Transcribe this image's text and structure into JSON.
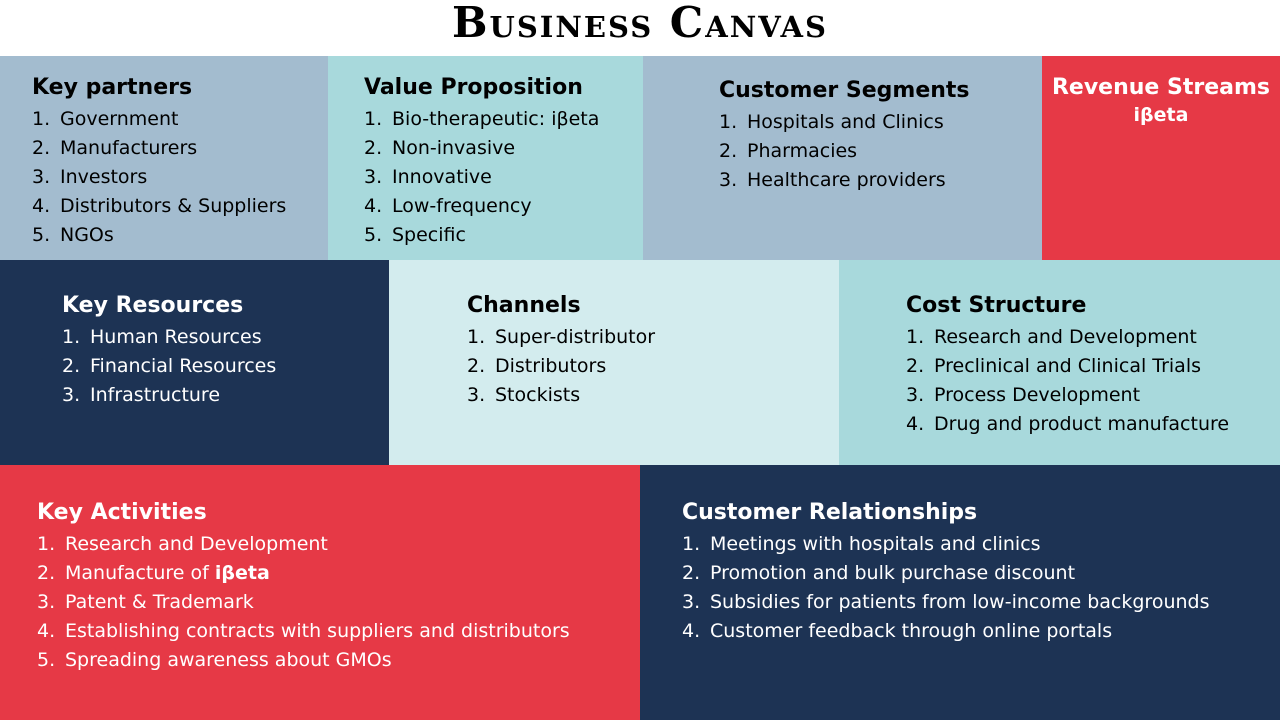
{
  "title": "Business Canvas",
  "colors": {
    "light_steel": "#a3bccf",
    "light_teal": "#a8d9dc",
    "pale_teal": "#d3ecee",
    "navy": "#1d3354",
    "red": "#e63946"
  },
  "key_partners": {
    "heading": "Key partners",
    "items": [
      "Government",
      "Manufacturers",
      "Investors",
      "Distributors & Suppliers",
      "NGOs"
    ]
  },
  "value_proposition": {
    "heading": "Value Proposition",
    "items": [
      "Bio-therapeutic: iβeta",
      "Non-invasive",
      "Innovative",
      "Low-frequency",
      "Specific"
    ]
  },
  "customer_segments": {
    "heading": "Customer Segments",
    "items": [
      "Hospitals and Clinics",
      "Pharmacies",
      "Healthcare providers"
    ]
  },
  "revenue_streams": {
    "heading": "Revenue Streams",
    "subtitle": "iβeta"
  },
  "key_resources": {
    "heading": "Key Resources",
    "items": [
      "Human Resources",
      "Financial Resources",
      "Infrastructure"
    ]
  },
  "channels": {
    "heading": "Channels",
    "items": [
      "Super-distributor",
      "Distributors",
      "Stockists"
    ]
  },
  "cost_structure": {
    "heading": "Cost Structure",
    "items": [
      "Research and Development",
      "Preclinical and Clinical Trials",
      "Process Development",
      "Drug and product manufacture"
    ]
  },
  "key_activities": {
    "heading": "Key Activities",
    "item1": "Research and Development",
    "item2_prefix": "Manufacture of ",
    "item2_bold": "iβeta",
    "item3": "Patent & Trademark",
    "item4": "Establishing contracts with suppliers and distributors",
    "item5": "Spreading awareness about GMOs"
  },
  "customer_relationships": {
    "heading": "Customer Relationships",
    "items": [
      "Meetings with hospitals and clinics",
      "Promotion and bulk purchase discount",
      "Subsidies for patients from low-income backgrounds",
      "Customer feedback through online portals"
    ]
  }
}
